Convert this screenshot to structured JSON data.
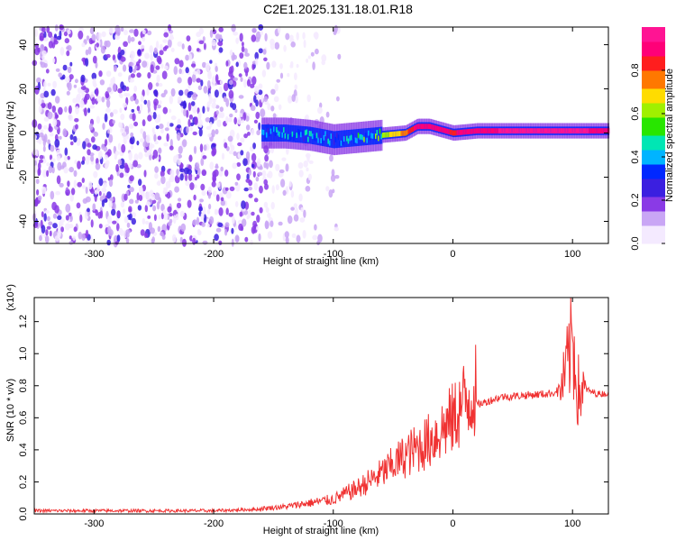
{
  "title": "C2E1.2025.131.18.01.R18",
  "chart_data": [
    {
      "type": "heatmap",
      "title": "C2E1.2025.131.18.01.R18",
      "xlabel": "Height of straight line (km)",
      "ylabel": "Frequency (Hz)",
      "xlim": [
        -350,
        130
      ],
      "ylim": [
        -50,
        48
      ],
      "xticks": [
        -300,
        -200,
        -100,
        0,
        100
      ],
      "yticks": [
        -40,
        -20,
        0,
        20,
        40
      ],
      "colorbar": {
        "label": "Normalized spectral amplitude",
        "range": [
          0.0,
          1.0
        ],
        "ticks": [
          "0.0",
          "0.2",
          "0.4",
          "0.6",
          "0.8"
        ],
        "colors": [
          "#f4eaff",
          "#c9a6f5",
          "#8a3ae6",
          "#3b1fe0",
          "#0028ff",
          "#00b4ff",
          "#00e6b4",
          "#28e600",
          "#a0f000",
          "#ffdc00",
          "#ff7800",
          "#ff1e1e",
          "#ff0078",
          "#ff1493"
        ]
      },
      "ridge_profile": {
        "x": [
          -160,
          -140,
          -120,
          -100,
          -80,
          -60,
          -40,
          -30,
          -20,
          0,
          20,
          50,
          80,
          100,
          130
        ],
        "y": [
          0,
          0,
          -1,
          -3,
          -2,
          -1,
          0,
          3,
          3,
          0,
          1,
          1,
          1,
          1,
          1
        ],
        "amplitude": [
          0.4,
          0.45,
          0.45,
          0.4,
          0.5,
          0.6,
          0.75,
          0.9,
          0.9,
          0.85,
          0.9,
          0.95,
          0.95,
          0.95,
          0.9
        ]
      }
    },
    {
      "type": "line",
      "xlabel": "Height of straight line (km)",
      "ylabel": "SNR (10 * v/v)",
      "y_multiplier": "(x10⁴)",
      "xlim": [
        -350,
        130
      ],
      "ylim": [
        0,
        1.35
      ],
      "xticks": [
        -300,
        -200,
        -100,
        0,
        100
      ],
      "yticks": [
        "0.0",
        "0.2",
        "0.4",
        "0.6",
        "0.8",
        "1.0",
        "1.2"
      ],
      "series": [
        {
          "color": "#f03232",
          "x": [
            -350,
            -300,
            -250,
            -200,
            -160,
            -140,
            -120,
            -100,
            -80,
            -60,
            -40,
            -20,
            0,
            10,
            20,
            40,
            60,
            80,
            90,
            95,
            100,
            105,
            110,
            120,
            130
          ],
          "y": [
            0.02,
            0.02,
            0.02,
            0.02,
            0.03,
            0.04,
            0.06,
            0.08,
            0.14,
            0.22,
            0.32,
            0.4,
            0.52,
            0.62,
            0.68,
            0.73,
            0.74,
            0.75,
            0.77,
            0.9,
            1.1,
            0.75,
            0.78,
            0.75,
            0.75
          ]
        }
      ]
    }
  ]
}
